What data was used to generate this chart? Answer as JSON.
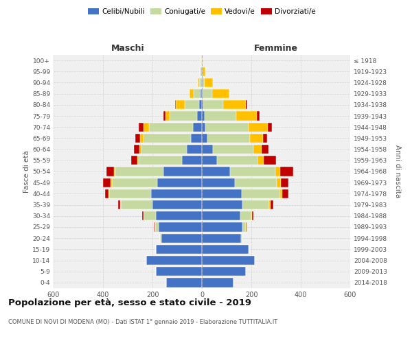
{
  "age_groups": [
    "100+",
    "95-99",
    "90-94",
    "85-89",
    "80-84",
    "75-79",
    "70-74",
    "65-69",
    "60-64",
    "55-59",
    "50-54",
    "45-49",
    "40-44",
    "35-39",
    "30-34",
    "25-29",
    "20-24",
    "15-19",
    "10-14",
    "5-9",
    "0-4"
  ],
  "birth_years": [
    "≤ 1918",
    "1919-1923",
    "1924-1928",
    "1929-1933",
    "1934-1938",
    "1939-1943",
    "1944-1948",
    "1949-1953",
    "1954-1958",
    "1959-1963",
    "1964-1968",
    "1969-1973",
    "1974-1978",
    "1979-1983",
    "1984-1988",
    "1989-1993",
    "1994-1998",
    "1999-2003",
    "2004-2008",
    "2009-2013",
    "2014-2018"
  ],
  "colors": {
    "celibe": "#4472c4",
    "coniugato": "#c5d9a0",
    "vedovo": "#ffc000",
    "divorziato": "#c00000"
  },
  "male": {
    "celibe": [
      2,
      2,
      2,
      5,
      10,
      20,
      35,
      45,
      60,
      80,
      155,
      180,
      205,
      200,
      185,
      175,
      165,
      185,
      225,
      185,
      145
    ],
    "coniugato": [
      0,
      3,
      8,
      28,
      60,
      110,
      180,
      190,
      185,
      175,
      195,
      185,
      170,
      128,
      50,
      15,
      5,
      2,
      0,
      0,
      0
    ],
    "vedovo": [
      1,
      3,
      8,
      18,
      35,
      18,
      22,
      15,
      8,
      5,
      5,
      4,
      3,
      2,
      2,
      2,
      0,
      0,
      0,
      0,
      0
    ],
    "divorziato": [
      0,
      0,
      0,
      0,
      2,
      8,
      18,
      20,
      22,
      25,
      32,
      30,
      15,
      8,
      5,
      3,
      0,
      0,
      0,
      0,
      0
    ]
  },
  "female": {
    "nubile": [
      1,
      2,
      2,
      4,
      5,
      10,
      15,
      22,
      45,
      62,
      115,
      132,
      160,
      165,
      155,
      165,
      158,
      190,
      215,
      178,
      128
    ],
    "coniugata": [
      0,
      2,
      10,
      38,
      82,
      130,
      175,
      172,
      162,
      162,
      182,
      172,
      158,
      108,
      44,
      14,
      5,
      2,
      0,
      0,
      0
    ],
    "vedova": [
      3,
      10,
      32,
      68,
      92,
      82,
      78,
      52,
      35,
      25,
      20,
      15,
      8,
      5,
      3,
      2,
      0,
      0,
      0,
      0,
      0
    ],
    "divorziata": [
      0,
      0,
      1,
      2,
      5,
      10,
      15,
      18,
      28,
      52,
      52,
      32,
      25,
      12,
      5,
      2,
      0,
      0,
      0,
      0,
      0
    ]
  },
  "title": "Popolazione per età, sesso e stato civile - 2019",
  "subtitle": "COMUNE DI NOVI DI MODENA (MO) - Dati ISTAT 1° gennaio 2019 - Elaborazione TUTTITALIA.IT",
  "xlabel_left": "Maschi",
  "xlabel_right": "Femmine",
  "ylabel_left": "Fasce di età",
  "ylabel_right": "Anni di nascita",
  "xlim": 600,
  "legend_labels": [
    "Celibi/Nubili",
    "Coniugati/e",
    "Vedovi/e",
    "Divorziati/e"
  ],
  "bg_color": "#f0f0f0",
  "grid_color": "#cccccc"
}
